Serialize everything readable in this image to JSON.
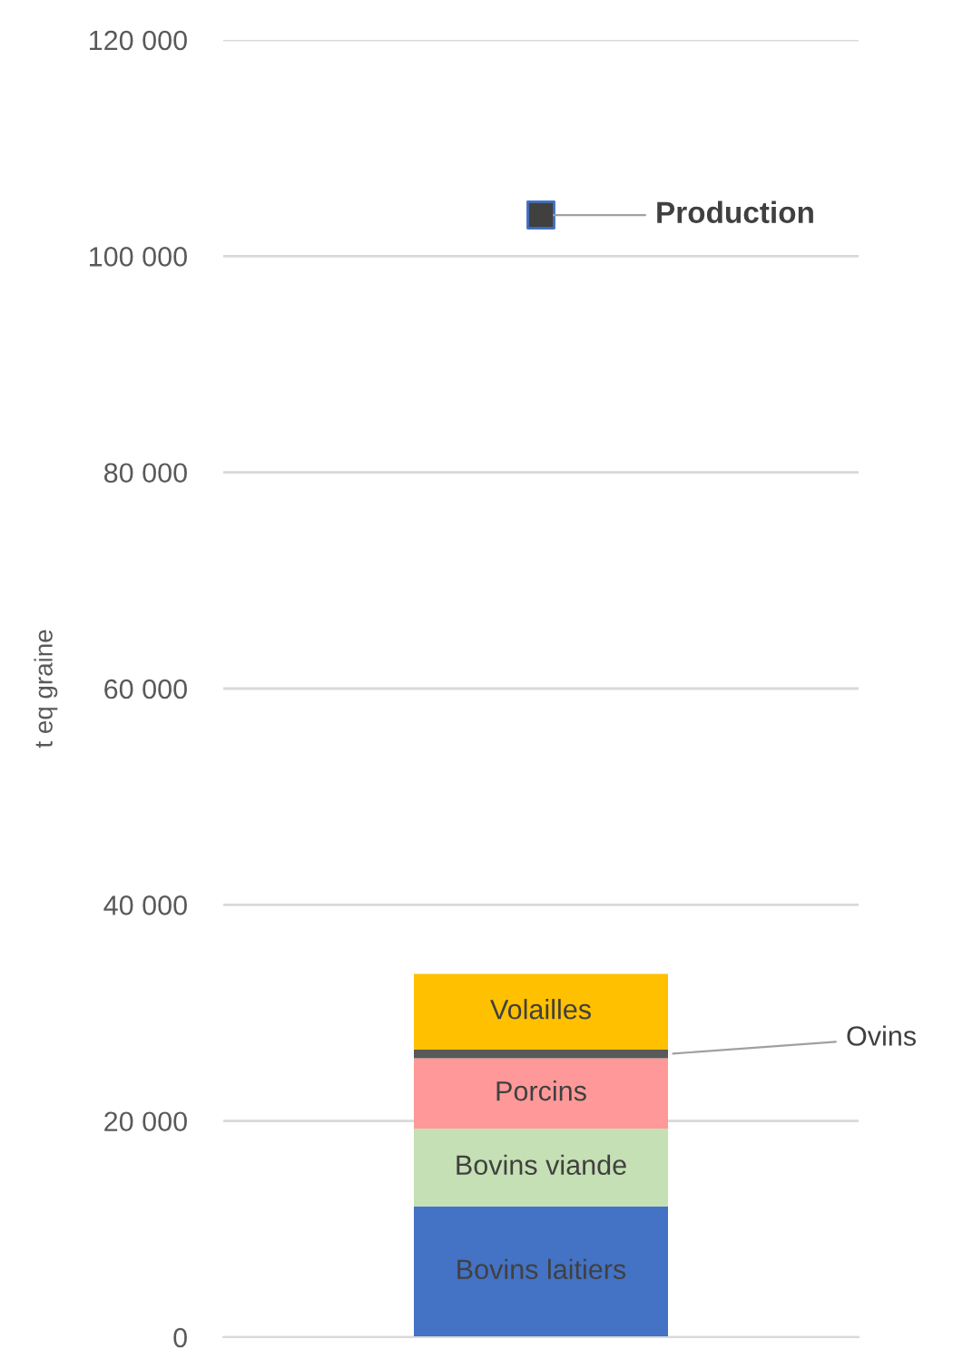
{
  "chart_data": {
    "type": "bar",
    "stacked": true,
    "ylabel": "t eq graine",
    "categories": [
      null
    ],
    "series": [
      {
        "name": "Bovins laitiers",
        "color": "#4472c4",
        "values": [
          12100
        ]
      },
      {
        "name": "Bovins viande",
        "color": "#c5e0b4",
        "values": [
          7200
        ]
      },
      {
        "name": "Porcins",
        "color": "#ff9999",
        "values": [
          6500
        ]
      },
      {
        "name": "Ovins",
        "color": "#595959",
        "values": [
          800
        ]
      },
      {
        "name": "Volailles",
        "color": "#ffc000",
        "values": [
          7000
        ]
      },
      {
        "name": "Production",
        "type": "scatter",
        "color": "#404040",
        "values": [
          103800
        ]
      }
    ],
    "ylim": [
      0,
      120000
    ],
    "yticks": [
      0,
      {
        "value": 20000,
        "label": "20 000"
      },
      {
        "value": 40000,
        "label": "40 000"
      },
      {
        "value": 60000,
        "label": "60 000"
      },
      {
        "value": 80000,
        "label": "80 000"
      },
      {
        "value": 100000,
        "label": "100 000"
      },
      {
        "value": 120000,
        "label": "120 000"
      }
    ],
    "grid": "y",
    "legend": false,
    "marker": "square",
    "tick_labels": "y"
  }
}
